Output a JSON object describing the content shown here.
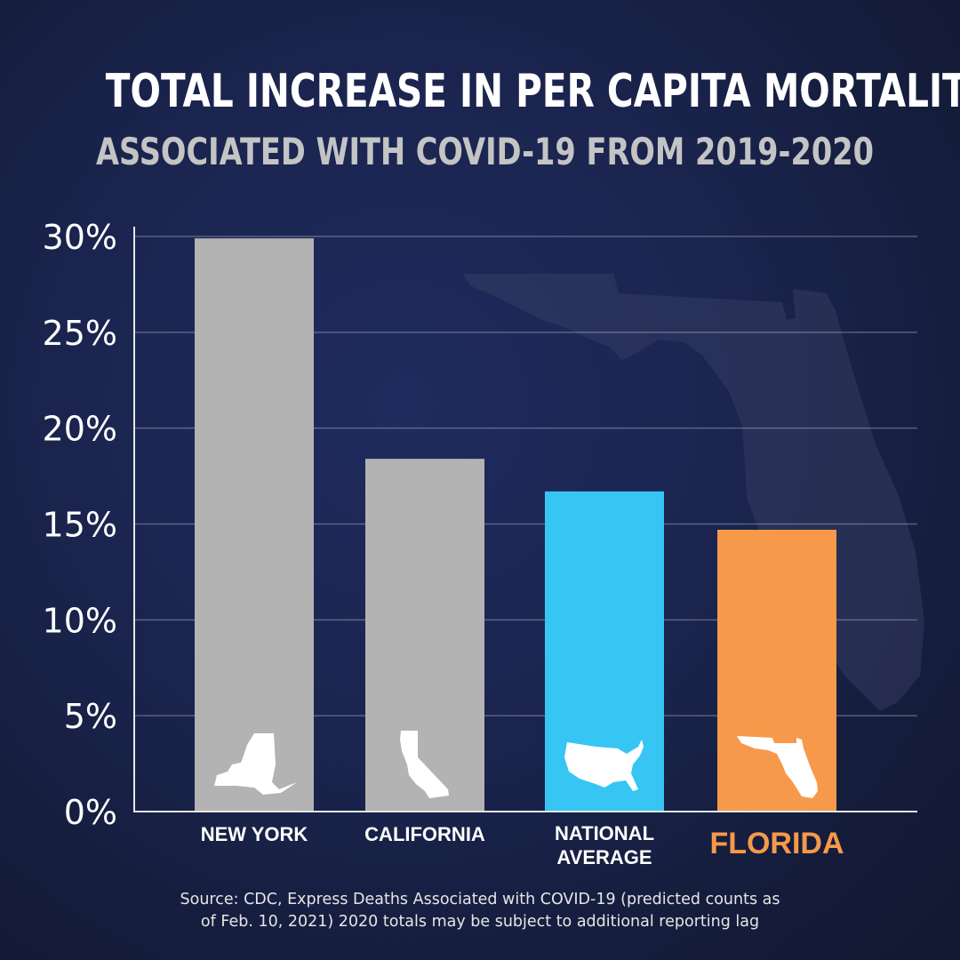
{
  "header": {
    "title": "TOTAL INCREASE IN PER CAPITA MORTALITY",
    "subtitle": "ASSOCIATED WITH COVID-19 FROM 2019-2020"
  },
  "chart_data": {
    "type": "bar",
    "title": "TOTAL INCREASE IN PER CAPITA MORTALITY",
    "subtitle": "ASSOCIATED WITH COVID-19 FROM 2019-2020",
    "xlabel": "",
    "ylabel": "",
    "ylim": [
      0,
      30
    ],
    "yticks": [
      0,
      5,
      10,
      15,
      20,
      25,
      30
    ],
    "ytick_labels": [
      "0%",
      "5%",
      "10%",
      "15%",
      "20%",
      "25%",
      "30%"
    ],
    "grid": true,
    "categories": [
      "NEW YORK",
      "CALIFORNIA",
      "NATIONAL AVERAGE",
      "FLORIDA"
    ],
    "category_lines": [
      [
        "NEW YORK"
      ],
      [
        "CALIFORNIA"
      ],
      [
        "NATIONAL",
        "AVERAGE"
      ],
      [
        "FLORIDA"
      ]
    ],
    "values": [
      29.9,
      18.4,
      16.7,
      14.7
    ],
    "bar_colors": [
      "#b3b3b3",
      "#b3b3b3",
      "#37c5f3",
      "#f7994a"
    ],
    "label_colors": [
      "#ffffff",
      "#ffffff",
      "#ffffff",
      "#f7994a"
    ],
    "bar_icons": [
      "new-york-state-icon",
      "california-state-icon",
      "usa-map-icon",
      "florida-state-icon"
    ],
    "background_icon": "florida-state-icon"
  },
  "footer": {
    "source_line1": "Source: CDC, Express Deaths Associated with COVID-19 (predicted counts as",
    "source_line2": "of Feb. 10, 2021) 2020 totals may be subject to additional reporting lag"
  }
}
